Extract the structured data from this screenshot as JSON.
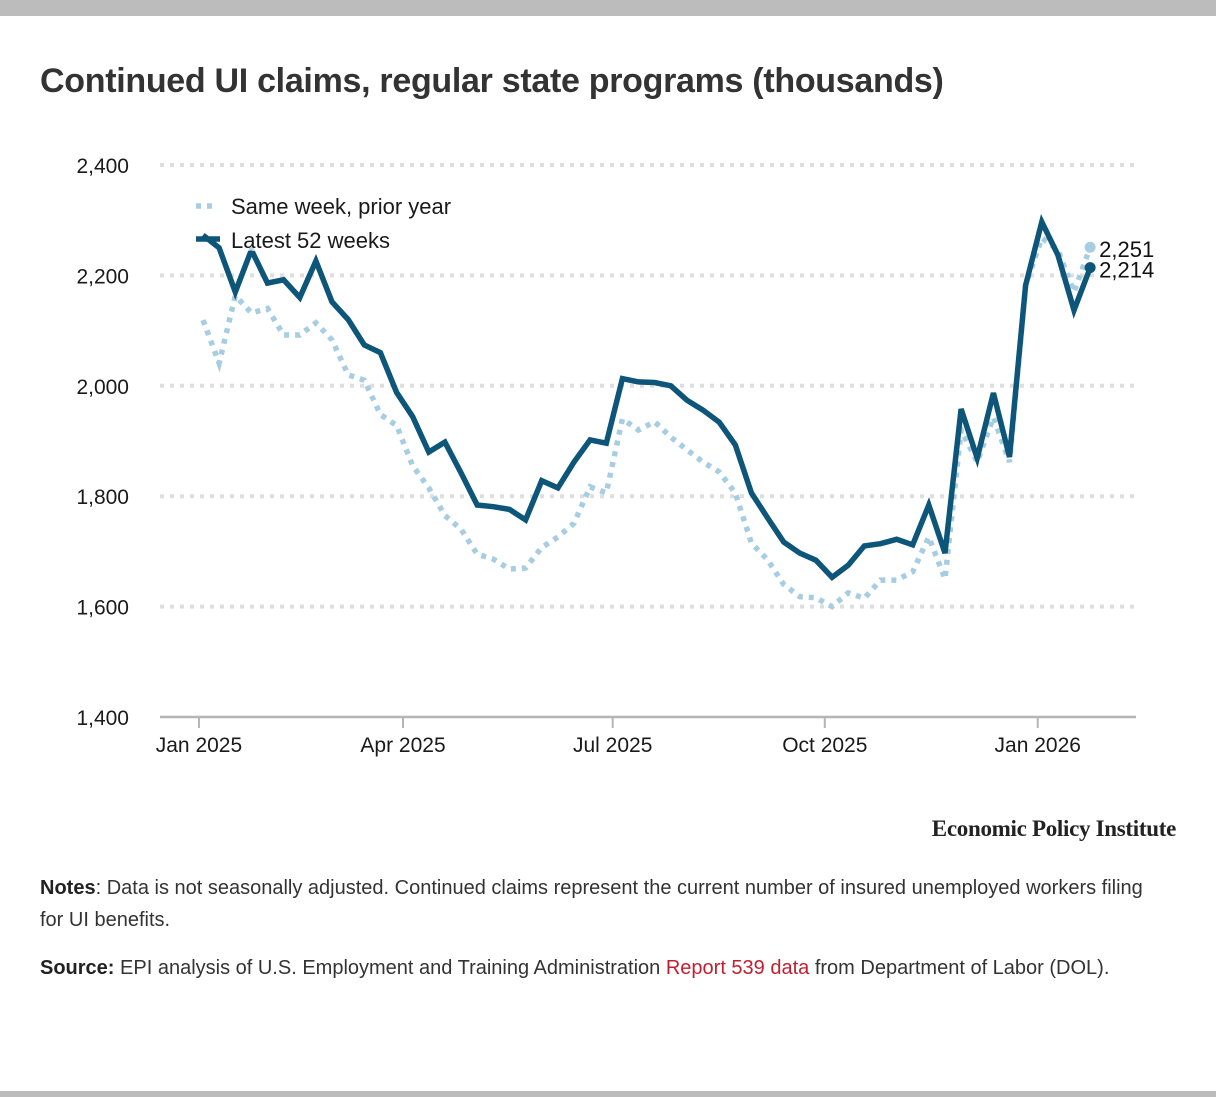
{
  "title": "Continued UI claims, regular state programs (thousands)",
  "brand": "Economic Policy Institute",
  "notes": {
    "label": "Notes",
    "text": ": Data is not seasonally adjusted. Continued claims represent the current number of insured unemployed workers filing for UI benefits."
  },
  "source": {
    "label": "Source:",
    "text_before": " EPI analysis of U.S. Employment and Training Administration ",
    "link_text": "Report 539 data",
    "text_after": " from Department of Labor (DOL)."
  },
  "colors": {
    "latest": "#0d5579",
    "prior": "#a6cde2",
    "grid": "#dedede",
    "axis": "#b5b5b5",
    "link": "#c01f2f"
  },
  "chart_data": {
    "type": "line",
    "title": "Continued UI claims, regular state programs (thousands)",
    "xlabel": "",
    "ylabel": "",
    "ylim": [
      1400,
      2400
    ],
    "yticks": [
      1400,
      1600,
      1800,
      2000,
      2200,
      2400
    ],
    "ytick_labels": [
      "1,400",
      "1,600",
      "1,800",
      "2,000",
      "2,200",
      "2,400"
    ],
    "xticks": [
      {
        "label": "Jan 2025",
        "week_index": -0.25
      },
      {
        "label": "Apr 2025",
        "week_index": 12.4
      },
      {
        "label": "Jul 2025",
        "week_index": 25.4
      },
      {
        "label": "Oct 2025",
        "week_index": 38.55
      },
      {
        "label": "Jan 2026",
        "week_index": 51.75
      }
    ],
    "x_unit": "weekly observations, first week of Jan 2025 through early Feb 2026",
    "grid": true,
    "legend_position": "top-left",
    "series": [
      {
        "name": "Same week, prior year",
        "style": "dotted",
        "end_label": "2,251",
        "values": [
          2119,
          2041,
          2163,
          2132,
          2140,
          2092,
          2092,
          2114,
          2083,
          2020,
          2010,
          1948,
          1928,
          1855,
          1815,
          1765,
          1740,
          1695,
          1686,
          1668,
          1670,
          1707,
          1726,
          1751,
          1817,
          1806,
          1940,
          1920,
          1935,
          1907,
          1884,
          1862,
          1844,
          1806,
          1715,
          1685,
          1640,
          1618,
          1616,
          1600,
          1625,
          1615,
          1648,
          1648,
          1663,
          1726,
          1650,
          1920,
          1862,
          1943,
          1862,
          2182,
          2268,
          2246,
          2170,
          2251
        ]
      },
      {
        "name": "Latest 52 weeks",
        "style": "solid",
        "end_label": "2,214",
        "values": [
          2273,
          2250,
          2170,
          2246,
          2186,
          2192,
          2160,
          2226,
          2152,
          2120,
          2074,
          2060,
          1988,
          1944,
          1880,
          1898,
          1842,
          1784,
          1781,
          1776,
          1757,
          1828,
          1815,
          1862,
          1902,
          1896,
          2013,
          2007,
          2006,
          2000,
          1974,
          1956,
          1934,
          1893,
          1806,
          1761,
          1717,
          1697,
          1684,
          1653,
          1675,
          1710,
          1714,
          1722,
          1712,
          1784,
          1697,
          1958,
          1869,
          1987,
          1871,
          2182,
          2297,
          2237,
          2137,
          2214
        ]
      }
    ]
  }
}
